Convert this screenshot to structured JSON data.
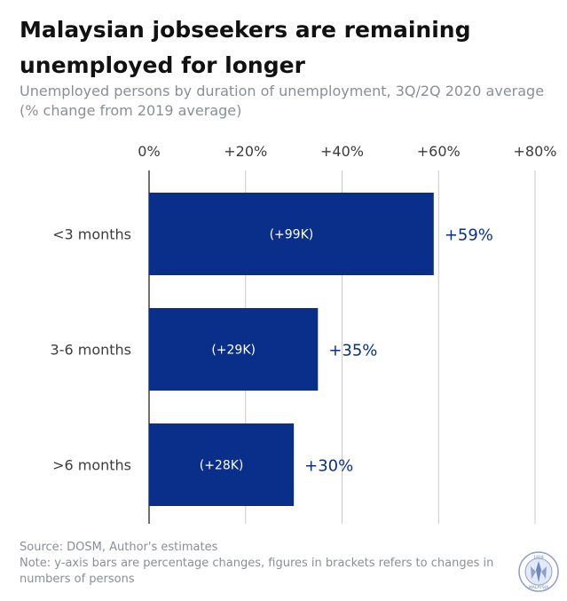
{
  "title": "Malaysian jobseekers are remaining unemployed for longer",
  "subtitle": "Unemployed persons by duration of unemployment, 3Q/2Q 2020 average (% change from 2019 average)",
  "footer": {
    "source": "Source: DOSM, Author's estimates",
    "note": "Note: y-axis bars are percentage changes, figures in brackets refers to changes in numbers of persons"
  },
  "logo": {
    "icon": "seal-logo-icon",
    "top_text": "1818",
    "bottom_text": "MALAYSIA"
  },
  "colors": {
    "bar": "#0a2f8a",
    "value_label": "#0a2f8a",
    "grid": "#c9c9c9",
    "axis_text": "#3c3c3c"
  },
  "chart_data": {
    "type": "bar",
    "orientation": "horizontal",
    "categories": [
      "<3 months",
      "3-6 months",
      ">6 months"
    ],
    "values": [
      59,
      35,
      30
    ],
    "value_labels": [
      "+59%",
      "+35%",
      "+30%"
    ],
    "inner_labels": [
      "(+99K)",
      "(+29K)",
      "(+28K)"
    ],
    "x_ticks": [
      0,
      20,
      40,
      60,
      80
    ],
    "x_tick_labels": [
      "0%",
      "+20%",
      "+40%",
      "+60%",
      "+80%"
    ],
    "xlim": [
      0,
      80
    ],
    "xlabel": "",
    "ylabel": "",
    "grid": true,
    "legend": "none"
  }
}
